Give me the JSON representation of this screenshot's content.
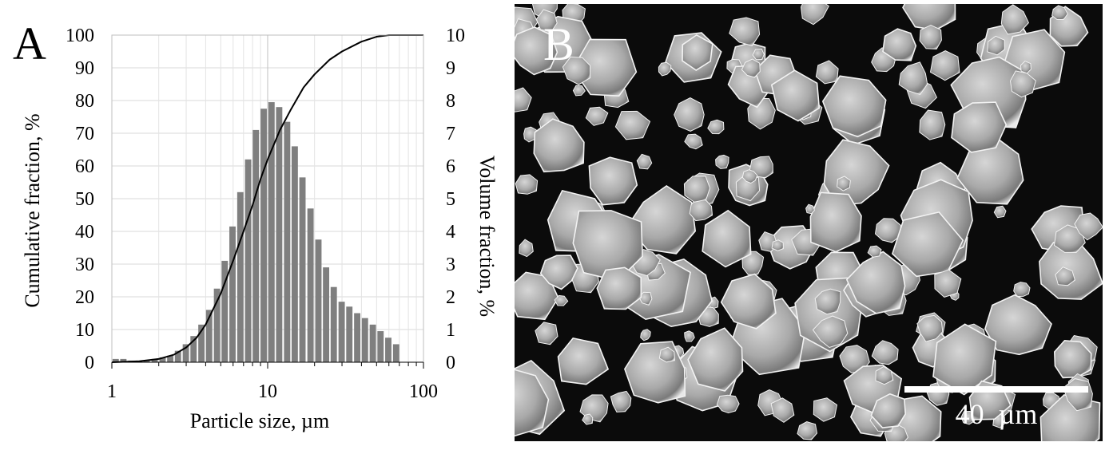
{
  "panel_a": {
    "letter": "A"
  },
  "panel_b": {
    "letter": "B",
    "scale_bar_label": "40  µm"
  },
  "chart_data": {
    "type": "bar",
    "title": "",
    "xlabel": "Particle size, µm",
    "ylabel_left": "Cumulative fraction, %",
    "ylabel_right": "Volume fraction, %",
    "x_scale": "log",
    "xlim": [
      1,
      100
    ],
    "ylim_left": [
      0,
      100
    ],
    "ylim_right": [
      0,
      10
    ],
    "x_ticks": [
      "1",
      "10",
      "100"
    ],
    "y_ticks_left": [
      "0",
      "10",
      "20",
      "30",
      "40",
      "50",
      "60",
      "70",
      "80",
      "90",
      "100"
    ],
    "y_ticks_right": [
      "0",
      "1",
      "2",
      "3",
      "4",
      "5",
      "6",
      "7",
      "8",
      "9",
      "10"
    ],
    "grid": true,
    "bar_color": "#7f7f7f",
    "line_color": "#000000",
    "series": [
      {
        "kind": "bar",
        "axis": "right",
        "x": [
          1.0,
          1.12,
          1.26,
          1.41,
          1.58,
          1.78,
          2.0,
          2.24,
          2.51,
          2.82,
          3.16,
          3.55,
          3.98,
          4.47,
          5.01,
          5.62,
          6.31,
          7.08,
          7.94,
          8.91,
          10.0,
          11.2,
          12.6,
          14.1,
          15.8,
          17.8,
          20.0,
          22.4,
          25.1,
          28.2,
          31.6,
          35.5,
          39.8,
          44.7,
          50.1,
          56.2,
          63.1
        ],
        "values": [
          0.1,
          0.1,
          0.05,
          0.05,
          0.05,
          0.1,
          0.15,
          0.2,
          0.35,
          0.55,
          0.8,
          1.15,
          1.6,
          2.25,
          3.1,
          4.15,
          5.2,
          6.2,
          7.1,
          7.75,
          7.95,
          7.8,
          7.35,
          6.6,
          5.65,
          4.7,
          3.75,
          2.9,
          2.3,
          1.85,
          1.7,
          1.5,
          1.35,
          1.15,
          0.95,
          0.75,
          0.55
        ]
      },
      {
        "kind": "line",
        "axis": "left",
        "x": [
          1.0,
          1.5,
          2.0,
          2.5,
          3.0,
          3.5,
          4.0,
          5.0,
          6.0,
          7.0,
          8.0,
          9.0,
          10.0,
          12.0,
          14.0,
          17.0,
          20.0,
          25.0,
          30.0,
          40.0,
          50.0,
          60.0,
          70.0,
          100.0
        ],
        "values": [
          0,
          0.3,
          1.0,
          2.3,
          4.5,
          7.5,
          11.5,
          21,
          31,
          40,
          48,
          56,
          62,
          71,
          77,
          84,
          88,
          92.5,
          95,
          98,
          99.5,
          100,
          100,
          100
        ]
      }
    ]
  }
}
